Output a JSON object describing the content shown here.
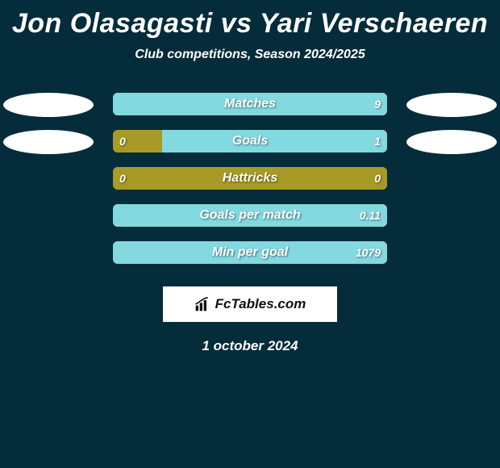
{
  "title": "Jon Olasagasti vs Yari Verschaeren",
  "subtitle": "Club competitions, Season 2024/2025",
  "date": "1 october 2024",
  "brand": "FcTables.com",
  "colors": {
    "background": "#052c3a",
    "player1": "#a89a26",
    "player2": "#82d9df",
    "oval": "#ffffff",
    "text": "#ffffff"
  },
  "stats": [
    {
      "label": "Matches",
      "left_val": "",
      "right_val": "9",
      "left_pct": 0,
      "right_pct": 100,
      "show_left_val": false,
      "show_right_val": true,
      "show_ovals": true
    },
    {
      "label": "Goals",
      "left_val": "0",
      "right_val": "1",
      "left_pct": 18,
      "right_pct": 82,
      "show_left_val": true,
      "show_right_val": true,
      "show_ovals": true
    },
    {
      "label": "Hattricks",
      "left_val": "0",
      "right_val": "0",
      "left_pct": 100,
      "right_pct": 0,
      "show_left_val": true,
      "show_right_val": true,
      "show_ovals": false
    },
    {
      "label": "Goals per match",
      "left_val": "",
      "right_val": "0.11",
      "left_pct": 0,
      "right_pct": 100,
      "show_left_val": false,
      "show_right_val": true,
      "show_ovals": false
    },
    {
      "label": "Min per goal",
      "left_val": "",
      "right_val": "1079",
      "left_pct": 0,
      "right_pct": 100,
      "show_left_val": false,
      "show_right_val": true,
      "show_ovals": false
    }
  ]
}
